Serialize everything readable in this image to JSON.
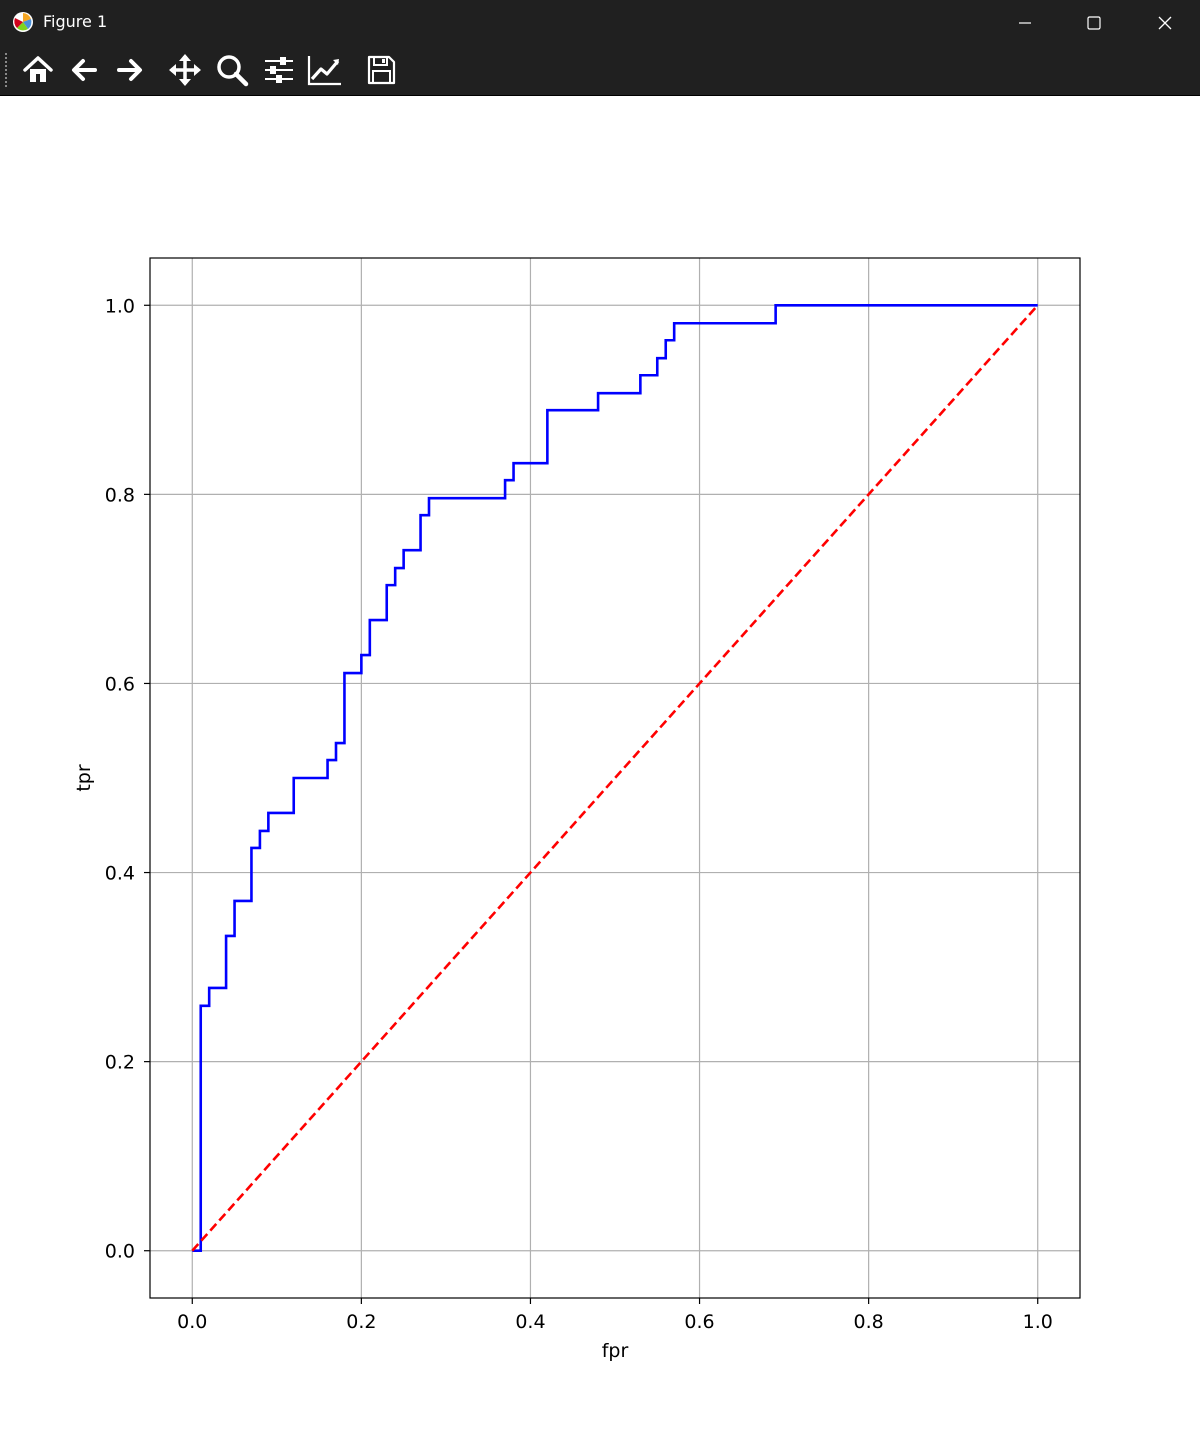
{
  "window": {
    "title": "Figure 1",
    "minimize_icon": "minimize-icon",
    "maximize_icon": "maximize-icon",
    "close_icon": "close-icon"
  },
  "toolbar": {
    "buttons": [
      {
        "name": "home-button",
        "icon": "home-icon"
      },
      {
        "name": "back-button",
        "icon": "arrow-left-icon"
      },
      {
        "name": "forward-button",
        "icon": "arrow-right-icon"
      },
      {
        "name": "pan-button",
        "icon": "move-icon"
      },
      {
        "name": "zoom-button",
        "icon": "magnifier-icon"
      },
      {
        "name": "subplots-button",
        "icon": "sliders-icon"
      },
      {
        "name": "axes-button",
        "icon": "line-chart-icon"
      },
      {
        "name": "save-button",
        "icon": "floppy-disk-icon"
      }
    ]
  },
  "chart_data": {
    "type": "line",
    "title": "",
    "xlabel": "fpr",
    "ylabel": "tpr",
    "xlim": [
      -0.05,
      1.05
    ],
    "ylim": [
      -0.05,
      1.05
    ],
    "xticks": [
      "0.0",
      "0.2",
      "0.4",
      "0.6",
      "0.8",
      "1.0"
    ],
    "yticks": [
      "0.0",
      "0.2",
      "0.4",
      "0.6",
      "0.8",
      "1.0"
    ],
    "grid": true,
    "legend": "none",
    "series": [
      {
        "color": "#0000ff",
        "style": "solid",
        "x": [
          0,
          0.01,
          0.01,
          0.02,
          0.02,
          0.04,
          0.04,
          0.05,
          0.05,
          0.07,
          0.07,
          0.08,
          0.08,
          0.09,
          0.09,
          0.12,
          0.12,
          0.16,
          0.16,
          0.17,
          0.17,
          0.18,
          0.18,
          0.2,
          0.2,
          0.21,
          0.21,
          0.23,
          0.23,
          0.24,
          0.24,
          0.25,
          0.25,
          0.27,
          0.27,
          0.28,
          0.28,
          0.37,
          0.37,
          0.38,
          0.38,
          0.42,
          0.42,
          0.48,
          0.48,
          0.53,
          0.53,
          0.55,
          0.55,
          0.56,
          0.56,
          0.57,
          0.57,
          0.69,
          0.69,
          1.0
        ],
        "y": [
          0,
          0,
          0.259,
          0.259,
          0.278,
          0.278,
          0.333,
          0.333,
          0.37,
          0.37,
          0.426,
          0.426,
          0.444,
          0.444,
          0.463,
          0.463,
          0.5,
          0.5,
          0.519,
          0.519,
          0.537,
          0.537,
          0.611,
          0.611,
          0.63,
          0.63,
          0.667,
          0.667,
          0.704,
          0.704,
          0.722,
          0.722,
          0.741,
          0.741,
          0.778,
          0.778,
          0.796,
          0.796,
          0.815,
          0.815,
          0.833,
          0.833,
          0.889,
          0.889,
          0.907,
          0.907,
          0.926,
          0.926,
          0.944,
          0.944,
          0.963,
          0.963,
          0.981,
          0.981,
          1.0,
          1.0
        ]
      },
      {
        "color": "#ff0000",
        "style": "dashed",
        "x": [
          0,
          1
        ],
        "y": [
          0,
          1
        ]
      }
    ]
  }
}
